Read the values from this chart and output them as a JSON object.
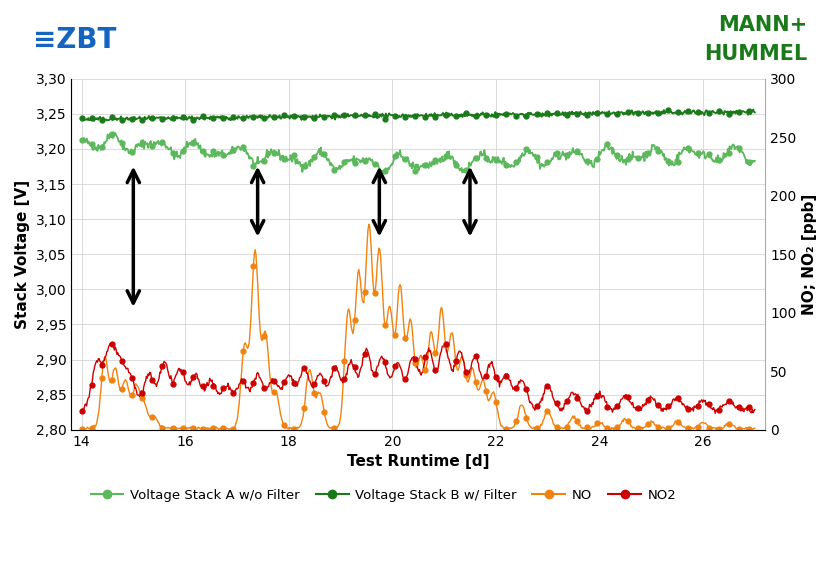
{
  "title": "",
  "xlabel": "Test Runtime [d]",
  "ylabel_left": "Stack Voltage [V]",
  "ylabel_right": "NO; NO₂ [ppb]",
  "xlim": [
    13.8,
    27.2
  ],
  "ylim_left": [
    2.8,
    3.3
  ],
  "ylim_right": [
    0,
    300
  ],
  "xticks": [
    14,
    16,
    18,
    20,
    22,
    24,
    26
  ],
  "yticks_left": [
    2.8,
    2.85,
    2.9,
    2.95,
    3.0,
    3.05,
    3.1,
    3.15,
    3.2,
    3.25,
    3.3
  ],
  "yticks_right": [
    0,
    50,
    100,
    150,
    200,
    250,
    300
  ],
  "color_stackA": "#5cb85c",
  "color_stackB": "#1a7a1a",
  "color_NO": "#f0820f",
  "color_NO2": "#cc0000",
  "color_zbt": "#1565c0",
  "color_mh": "#1a7a1a",
  "legend_labels": [
    "Voltage Stack A w/o Filter",
    "Voltage Stack B w/ Filter",
    "NO",
    "NO2"
  ],
  "arrow_positions": [
    {
      "x": 15.0,
      "y_top": 3.175,
      "y_bot": 2.975
    },
    {
      "x": 17.4,
      "y_top": 3.175,
      "y_bot": 3.075
    },
    {
      "x": 19.75,
      "y_top": 3.175,
      "y_bot": 3.075
    },
    {
      "x": 21.5,
      "y_top": 3.175,
      "y_bot": 3.075
    }
  ],
  "background_color": "#ffffff",
  "grid_color": "#cccccc"
}
